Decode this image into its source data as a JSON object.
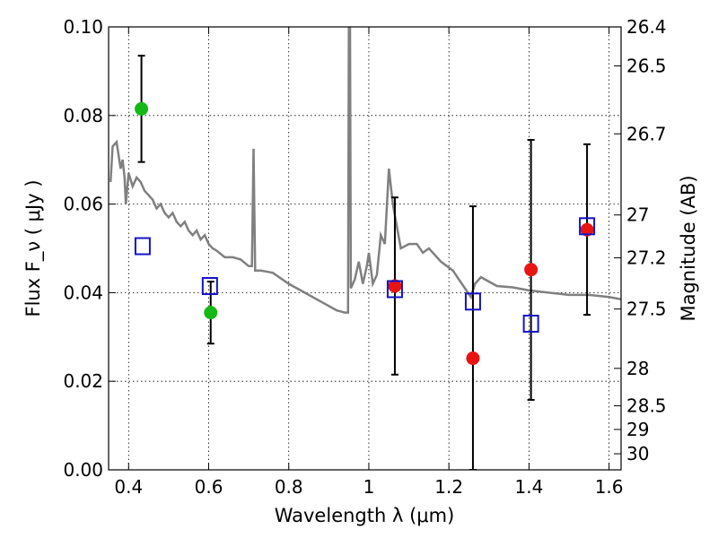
{
  "chart_data": {
    "type": "scatter",
    "title": "",
    "xlabel": "Wavelength  λ (μm)",
    "ylabel": "Flux  F_ν  ( μJy )",
    "y2label": "Magnitude (AB)",
    "xlim": [
      0.35,
      1.63
    ],
    "ylim": [
      0.0,
      0.1
    ],
    "grid": true,
    "xticks": [
      0.4,
      0.6,
      0.8,
      1.0,
      1.2,
      1.4,
      1.6
    ],
    "xtick_labels": [
      "0.4",
      "0.6",
      "0.8",
      "1",
      "1.2",
      "1.4",
      "1.6"
    ],
    "yticks": [
      0.0,
      0.02,
      0.04,
      0.06,
      0.08,
      0.1
    ],
    "ytick_labels": [
      "0.00",
      "0.02",
      "0.04",
      "0.06",
      "0.08",
      "0.10"
    ],
    "y2_ticks": [
      26.4,
      26.5,
      26.7,
      27,
      27.2,
      27.5,
      28,
      28.5,
      29,
      30
    ],
    "y2_tick_labels": [
      "26.4",
      "26.5",
      "26.7",
      "27",
      "27.2",
      "27.5",
      "28",
      "28.5",
      "29",
      "30"
    ],
    "series": [
      {
        "kind": "line",
        "color": "#808080",
        "points": [
          [
            0.355,
            0.065
          ],
          [
            0.36,
            0.073
          ],
          [
            0.37,
            0.074
          ],
          [
            0.38,
            0.068
          ],
          [
            0.385,
            0.07
          ],
          [
            0.39,
            0.066
          ],
          [
            0.393,
            0.06
          ],
          [
            0.4,
            0.067
          ],
          [
            0.41,
            0.064
          ],
          [
            0.42,
            0.066
          ],
          [
            0.43,
            0.065
          ],
          [
            0.44,
            0.063
          ],
          [
            0.45,
            0.062
          ],
          [
            0.46,
            0.061
          ],
          [
            0.47,
            0.059
          ],
          [
            0.48,
            0.06
          ],
          [
            0.49,
            0.058
          ],
          [
            0.5,
            0.057
          ],
          [
            0.51,
            0.058
          ],
          [
            0.52,
            0.056
          ],
          [
            0.53,
            0.055
          ],
          [
            0.54,
            0.056
          ],
          [
            0.55,
            0.054
          ],
          [
            0.56,
            0.053
          ],
          [
            0.57,
            0.054
          ],
          [
            0.58,
            0.052
          ],
          [
            0.59,
            0.053
          ],
          [
            0.6,
            0.051
          ],
          [
            0.61,
            0.05
          ],
          [
            0.62,
            0.0495
          ],
          [
            0.64,
            0.048
          ],
          [
            0.66,
            0.048
          ],
          [
            0.68,
            0.0475
          ],
          [
            0.7,
            0.046
          ],
          [
            0.708,
            0.046
          ],
          [
            0.712,
            0.0725
          ],
          [
            0.716,
            0.045
          ],
          [
            0.73,
            0.045
          ],
          [
            0.76,
            0.0445
          ],
          [
            0.8,
            0.042
          ],
          [
            0.84,
            0.04
          ],
          [
            0.88,
            0.038
          ],
          [
            0.92,
            0.036
          ],
          [
            0.94,
            0.0355
          ],
          [
            0.948,
            0.0355
          ],
          [
            0.95,
            0.1
          ],
          [
            0.953,
            0.1
          ],
          [
            0.955,
            0.041
          ],
          [
            0.965,
            0.043
          ],
          [
            0.975,
            0.047
          ],
          [
            0.985,
            0.042
          ],
          [
            0.995,
            0.046
          ],
          [
            1.0,
            0.049
          ],
          [
            1.01,
            0.042
          ],
          [
            1.02,
            0.044
          ],
          [
            1.03,
            0.053
          ],
          [
            1.04,
            0.051
          ],
          [
            1.05,
            0.068
          ],
          [
            1.06,
            0.06
          ],
          [
            1.08,
            0.05
          ],
          [
            1.1,
            0.051
          ],
          [
            1.12,
            0.051
          ],
          [
            1.135,
            0.049
          ],
          [
            1.15,
            0.05
          ],
          [
            1.18,
            0.047
          ],
          [
            1.21,
            0.045
          ],
          [
            1.24,
            0.041
          ],
          [
            1.255,
            0.039
          ],
          [
            1.265,
            0.042
          ],
          [
            1.28,
            0.0435
          ],
          [
            1.32,
            0.0415
          ],
          [
            1.36,
            0.0412
          ],
          [
            1.4,
            0.0405
          ],
          [
            1.45,
            0.04
          ],
          [
            1.5,
            0.0395
          ],
          [
            1.55,
            0.0395
          ],
          [
            1.6,
            0.039
          ],
          [
            1.63,
            0.0385
          ]
        ]
      },
      {
        "kind": "points",
        "marker": "circle",
        "color": "#16b816",
        "points": [
          {
            "x": 0.432,
            "y": 0.0815,
            "ylo": 0.0695,
            "yhi": 0.0935
          },
          {
            "x": 0.605,
            "y": 0.0355,
            "ylo": 0.0285,
            "yhi": 0.0425
          }
        ]
      },
      {
        "kind": "points",
        "marker": "circle",
        "color": "#e81414",
        "points": [
          {
            "x": 1.065,
            "y": 0.0415,
            "ylo": 0.0215,
            "yhi": 0.0615
          },
          {
            "x": 1.26,
            "y": 0.0252,
            "ylo": 0.0,
            "yhi": 0.0595
          },
          {
            "x": 1.405,
            "y": 0.0452,
            "ylo": 0.0158,
            "yhi": 0.0745
          },
          {
            "x": 1.545,
            "y": 0.0542,
            "ylo": 0.035,
            "yhi": 0.0735
          }
        ]
      },
      {
        "kind": "points",
        "marker": "open-square",
        "color": "#1414c8",
        "points": [
          {
            "x": 0.435,
            "y": 0.0505
          },
          {
            "x": 0.603,
            "y": 0.0415
          },
          {
            "x": 1.065,
            "y": 0.0408
          },
          {
            "x": 1.26,
            "y": 0.038
          },
          {
            "x": 1.405,
            "y": 0.033
          },
          {
            "x": 1.545,
            "y": 0.055
          }
        ]
      }
    ]
  }
}
